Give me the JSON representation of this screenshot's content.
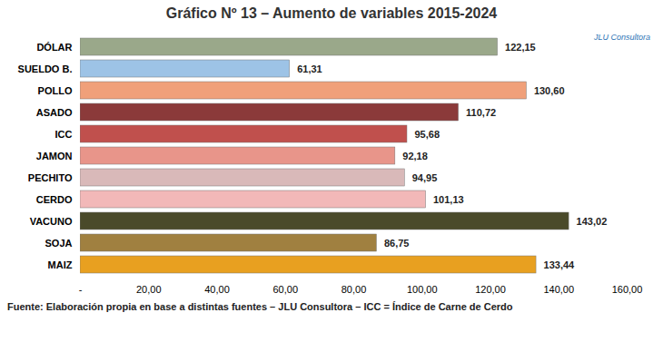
{
  "chart_data": {
    "type": "bar",
    "orientation": "horizontal",
    "title": "Gráfico Nº 13 – Aumento de variables 2015-2024",
    "caption": "Fuente: Elaboración propia en base a distintas fuentes – JLU Consultora – ICC = Índice de Carne de Cerdo",
    "annotations": [
      "JLU Consultora"
    ],
    "categories": [
      "DÓLAR",
      "SUELDO B.",
      "POLLO",
      "ASADO",
      "ICC",
      "JAMON",
      "PECHITO",
      "CERDO",
      "VACUNO",
      "SOJA",
      "MAIZ"
    ],
    "values": [
      122.15,
      61.31,
      130.6,
      110.72,
      95.68,
      92.18,
      94.95,
      101.13,
      143.02,
      86.75,
      133.44
    ],
    "value_labels": [
      "122,15",
      "61,31",
      "130,60",
      "110,72",
      "95,68",
      "92,18",
      "94,95",
      "101,13",
      "143,02",
      "86,75",
      "133,44"
    ],
    "colors": [
      "#9aa88a",
      "#9dc3e6",
      "#f0a07a",
      "#8b3a3a",
      "#c0504d",
      "#e8958a",
      "#d9b9b9",
      "#f2b8b8",
      "#4a4a2a",
      "#a08040",
      "#e8a020"
    ],
    "data_labels": true,
    "grid": false,
    "xlim": [
      0,
      160
    ],
    "xticks": [
      {
        "value": 0,
        "label": "-"
      },
      {
        "value": 20,
        "label": "20,00"
      },
      {
        "value": 40,
        "label": "40,00"
      },
      {
        "value": 60,
        "label": "60,00"
      },
      {
        "value": 80,
        "label": "80,00"
      },
      {
        "value": 100,
        "label": "100,00"
      },
      {
        "value": 120,
        "label": "120,00"
      },
      {
        "value": 140,
        "label": "140,00"
      },
      {
        "value": 160,
        "label": "160,00"
      }
    ]
  }
}
